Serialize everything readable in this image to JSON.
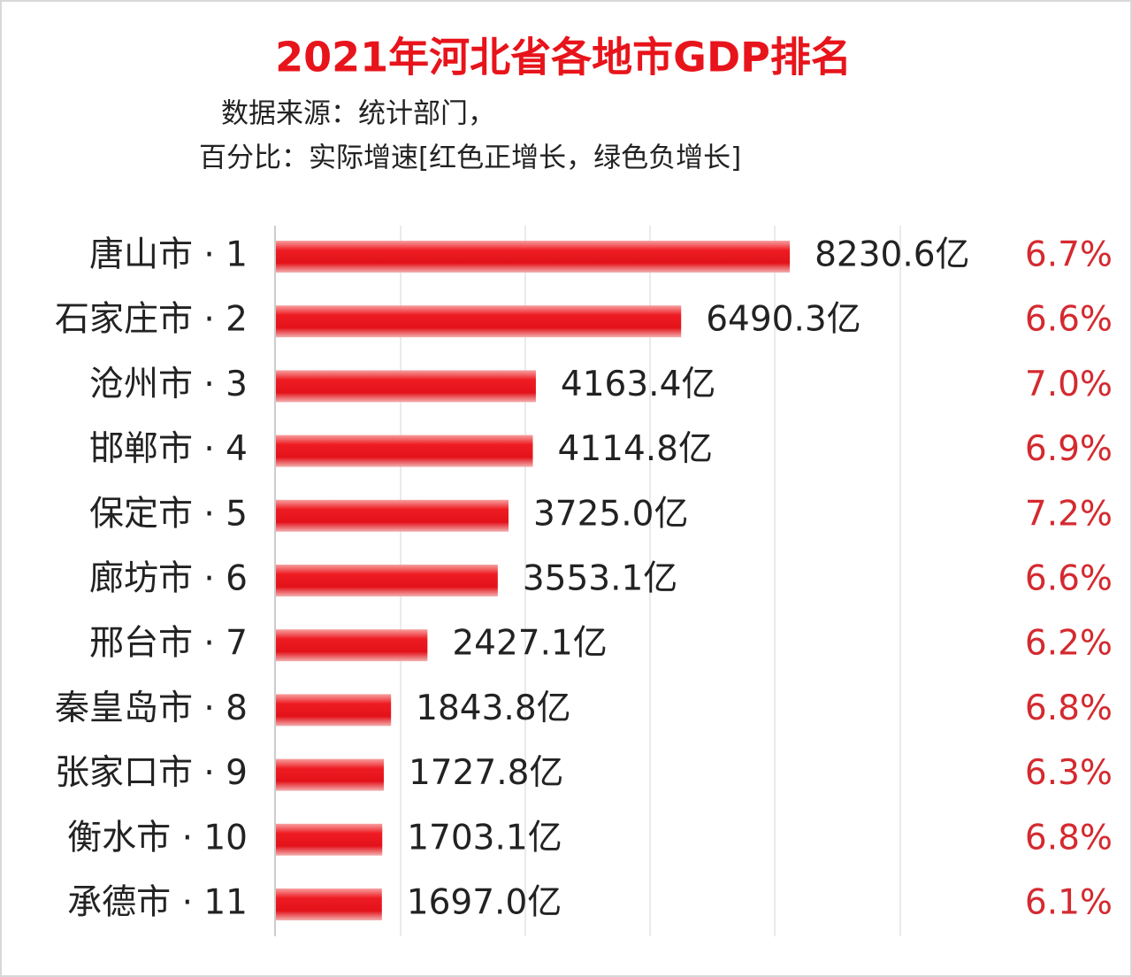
{
  "chart_data": {
    "type": "bar",
    "orientation": "horizontal",
    "title": "2021年河北省各地市GDP排名",
    "subtitle": [
      "数据来源：统计部门，",
      "百分比：实际增速[红色正增长，绿色负增长]"
    ],
    "categories": [
      "唐山市 · 1",
      "石家庄市 · 2",
      "沧州市 · 3",
      "邯郸市 · 4",
      "保定市 · 5",
      "廊坊市 · 6",
      "邢台市 · 7",
      "秦皇岛市 · 8",
      "张家口市 · 9",
      "衡水市 · 10",
      "承德市 · 11"
    ],
    "values": [
      8230.6,
      6490.3,
      4163.4,
      4114.8,
      3725.0,
      3553.1,
      2427.1,
      1843.8,
      1727.8,
      1703.1,
      1697.0
    ],
    "value_labels": [
      "8230.6亿",
      "6490.3亿",
      "4163.4亿",
      "4114.8亿",
      "3725.0亿",
      "3553.1亿",
      "2427.1亿",
      "1843.8亿",
      "1727.8亿",
      "1703.1亿",
      "1697.0亿"
    ],
    "growth_labels": [
      "6.7%",
      "6.6%",
      "7.0%",
      "6.9%",
      "7.2%",
      "6.6%",
      "6.2%",
      "6.8%",
      "6.3%",
      "6.8%",
      "6.1%"
    ],
    "color": "#e8141b",
    "growth_color": "#d42a2f",
    "xlim": [
      0,
      10000
    ]
  }
}
